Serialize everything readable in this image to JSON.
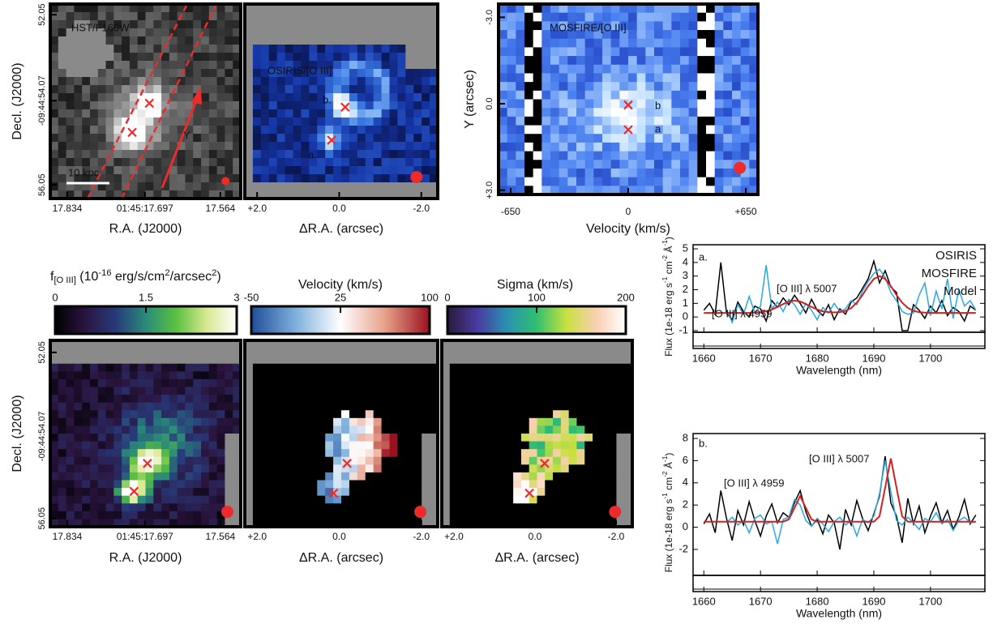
{
  "chart_data": [
    {
      "type": "image",
      "title": "HST/F160W",
      "xlabel": "R.A. (J2000)",
      "ylabel": "Decl. (J2000)",
      "xlim": [
        17.864,
        17.528
      ],
      "xticks": [
        17.834,
        {
          "value": 17.697,
          "label": "01:45:17.697"
        },
        17.564
      ],
      "ylim": [
        56.37,
        51.8
      ],
      "yticks": [
        52.05,
        {
          "value": 54.07,
          "label": "-09:44:54.07"
        },
        56.05
      ],
      "annotations": [
        "10 kpc",
        "Y"
      ]
    },
    {
      "type": "image",
      "title": "OSIRIS/[O III]",
      "xlabel": "ΔR.A. (arcsec)",
      "xlim": [
        2.3,
        -2.4
      ],
      "xticks": [
        {
          "value": 2,
          "label": "+2.0"
        },
        {
          "value": 0,
          "label": "0.0"
        },
        {
          "value": -2,
          "label": "-2.0"
        }
      ],
      "annotations": [
        "a.",
        "b."
      ]
    },
    {
      "type": "image",
      "title": "MOSFIRE/[O III]",
      "xlabel": "Velocity (km/s)",
      "ylabel": "Y (arcsec)",
      "xlim": [
        -717,
        717
      ],
      "xticks": [
        -650,
        0,
        {
          "value": 650,
          "label": "+650"
        }
      ],
      "ylim": [
        3.15,
        -3.46
      ],
      "yticks": [
        {
          "value": -3,
          "label": "-3.0"
        },
        {
          "value": 0,
          "label": "0.0"
        },
        {
          "value": 3,
          "label": "+3.0"
        }
      ],
      "annotations": [
        "a",
        "b"
      ]
    },
    {
      "type": "image",
      "xlabel": "R.A. (J2000)",
      "ylabel": "Decl. (J2000)",
      "xlim": [
        17.864,
        17.528
      ],
      "xticks": [
        17.834,
        {
          "value": 17.697,
          "label": "01:45:17.697"
        },
        17.564
      ],
      "ylim": [
        56.25,
        51.76
      ],
      "yticks": [
        52.05,
        {
          "value": 54.07,
          "label": "-09:44:54.07"
        },
        56.05
      ],
      "colorbar": {
        "label": [
          "f",
          "[O III]",
          " (10",
          "-16",
          " erg/s/cm",
          "2",
          "/arcsec",
          "2",
          ")"
        ],
        "lim": [
          0,
          3
        ],
        "ticks": [
          0,
          1.5,
          3
        ],
        "colors": [
          "#000000",
          "#2a1540",
          "#283a7a",
          "#2a8a7a",
          "#5ac040",
          "#d8e890",
          "#ffffff"
        ]
      }
    },
    {
      "type": "image",
      "xlabel": "ΔR.A. (arcsec)",
      "xlim": [
        2.3,
        -2.4
      ],
      "xticks": [
        {
          "value": 2,
          "label": "+2.0"
        },
        {
          "value": 0,
          "label": "0.0"
        },
        {
          "value": -2,
          "label": "-2.0"
        }
      ],
      "colorbar": {
        "label": "Velocity (km/s)",
        "lim": [
          -50,
          100
        ],
        "ticks": [
          -50,
          25,
          100
        ],
        "colors": [
          "#1f4e9a",
          "#7fb0dc",
          "#ffffff",
          "#e7a08a",
          "#9a1020"
        ]
      }
    },
    {
      "type": "image",
      "xlabel": "ΔR.A. (arcsec)",
      "xlim": [
        2.3,
        -2.4
      ],
      "xticks": [
        {
          "value": 2,
          "label": "+2.0"
        },
        {
          "value": 0,
          "label": "0.0"
        },
        {
          "value": -2,
          "label": "-2.0"
        }
      ],
      "colorbar": {
        "label": "Sigma (km/s)",
        "lim": [
          0,
          200
        ],
        "ticks": [
          0,
          100,
          200
        ],
        "colors": [
          "#2a1a3a",
          "#4a3aa0",
          "#2a90b0",
          "#30c070",
          "#c8e040",
          "#f8d0b0",
          "#ffffff"
        ]
      }
    },
    {
      "type": "line",
      "xlabel": "Wavelength (nm)",
      "ylabel": [
        "Flux (1e-18 erg s",
        "-1",
        " cm",
        "-2",
        " Å",
        "-1",
        ")"
      ],
      "x": [
        1660,
        1661,
        1662,
        1663,
        1664,
        1665,
        1666,
        1667,
        1668,
        1669,
        1670,
        1671,
        1672,
        1673,
        1674,
        1675,
        1676,
        1677,
        1678,
        1679,
        1680,
        1681,
        1682,
        1683,
        1684,
        1685,
        1686,
        1687,
        1688,
        1689,
        1690,
        1691,
        1692,
        1693,
        1694,
        1695,
        1696,
        1697,
        1698,
        1699,
        1700,
        1701,
        1702,
        1703,
        1704,
        1705,
        1706,
        1707,
        1708
      ],
      "xlim": [
        1658.1,
        1709.6
      ],
      "xticks": [
        1660,
        1670,
        1680,
        1690,
        1700
      ],
      "ylim": [
        -1.12,
        5.3
      ],
      "yticks": [
        -1,
        0,
        1,
        2,
        3,
        4,
        5
      ],
      "legend": "upper right",
      "annotations": [
        "a.",
        "[O III] λ 4959",
        "[O III] λ 5007"
      ],
      "series": [
        {
          "name": "OSIRIS",
          "color": "#000000",
          "values": [
            0.5,
            1.0,
            0.2,
            4.0,
            0.3,
            -0.2,
            1.1,
            0.4,
            0.0,
            0.8,
            0.6,
            -0.3,
            1.2,
            0.7,
            1.4,
            0.9,
            1.6,
            1.0,
            0.3,
            1.3,
            0.5,
            0.1,
            0.9,
            -0.2,
            0.6,
            0.2,
            1.1,
            1.4,
            2.1,
            2.8,
            4.1,
            2.5,
            3.4,
            2.2,
            1.8,
            -1.0,
            -1.0,
            0.9,
            0.5,
            -0.1,
            0.8,
            0.3,
            1.2,
            0.1,
            0.7,
            0.4,
            -0.3,
            0.8,
            0.5
          ]
        },
        {
          "name": "MOSFIRE",
          "color": "#29a8e0",
          "values": [
            null,
            null,
            null,
            null,
            0.6,
            -0.4,
            0.9,
            0.2,
            1.5,
            0.3,
            0.8,
            3.8,
            0.6,
            1.1,
            0.4,
            1.3,
            0.9,
            0.2,
            1.0,
            0.5,
            -0.2,
            0.7,
            0.3,
            1.0,
            0.4,
            0.6,
            1.2,
            0.9,
            1.9,
            2.6,
            3.2,
            3.5,
            2.9,
            1.8,
            1.2,
            0.4,
            0.2,
            0.3,
            1.6,
            2.5,
            0.1,
            1.9,
            0.6,
            2.8,
            -0.1,
            2.0,
            0.8,
            1.2,
            0.5
          ]
        },
        {
          "name": "Model",
          "color": "#d42020",
          "values": [
            0.3,
            0.3,
            0.3,
            0.3,
            0.3,
            0.3,
            0.3,
            0.3,
            0.3,
            0.32,
            0.35,
            0.42,
            0.55,
            0.74,
            0.95,
            1.13,
            1.2,
            1.13,
            0.95,
            0.74,
            0.55,
            0.42,
            0.35,
            0.34,
            0.35,
            0.45,
            0.66,
            1.05,
            1.61,
            2.26,
            2.79,
            3.0,
            2.79,
            2.26,
            1.61,
            1.05,
            0.66,
            0.45,
            0.35,
            0.32,
            0.3,
            0.3,
            0.3,
            0.3,
            0.3,
            0.3,
            0.3,
            0.3,
            0.3
          ]
        }
      ]
    },
    {
      "type": "line",
      "xlabel": "Wavelength (nm)",
      "ylabel": [
        "Flux (1e-18 erg s",
        "-1",
        " cm",
        "-2",
        " Å",
        "-1",
        ")"
      ],
      "x": [
        1660,
        1661,
        1662,
        1663,
        1664,
        1665,
        1666,
        1667,
        1668,
        1669,
        1670,
        1671,
        1672,
        1673,
        1674,
        1675,
        1676,
        1677,
        1678,
        1679,
        1680,
        1681,
        1682,
        1683,
        1684,
        1685,
        1686,
        1687,
        1688,
        1689,
        1690,
        1691,
        1692,
        1693,
        1694,
        1695,
        1696,
        1697,
        1698,
        1699,
        1700,
        1701,
        1702,
        1703,
        1704,
        1705,
        1706,
        1707,
        1708
      ],
      "xlim": [
        1658.1,
        1709.6
      ],
      "xticks": [
        1660,
        1670,
        1680,
        1690,
        1700
      ],
      "ylim": [
        -4.34,
        8.44
      ],
      "yticks": [
        -2,
        0,
        2,
        4,
        6,
        8
      ],
      "annotations": [
        "b.",
        "[O III] λ 4959",
        "[O III] λ 5007"
      ],
      "series": [
        {
          "color": "#000000",
          "values": [
            0.3,
            1.2,
            -0.5,
            3.3,
            0.8,
            -1.2,
            1.5,
            0.2,
            2.3,
            0.6,
            -0.8,
            1.0,
            2.1,
            0.4,
            1.3,
            0.9,
            2.2,
            3.3,
            1.4,
            0.1,
            0.7,
            -0.6,
            1.1,
            0.4,
            -2.0,
            1.6,
            0.2,
            2.4,
            0.8,
            -0.3,
            1.2,
            2.8,
            6.4,
            2.2,
            1.0,
            -1.4,
            2.6,
            0.3,
            1.9,
            -0.5,
            1.0,
            2.2,
            0.4,
            1.5,
            -0.2,
            0.9,
            2.5,
            0.3,
            1.1
          ]
        },
        {
          "color": "#29a8e0",
          "values": [
            null,
            null,
            null,
            null,
            0.4,
            0.9,
            0.2,
            0.6,
            -0.5,
            0.8,
            1.1,
            0.3,
            0.5,
            -1.5,
            0.7,
            0.9,
            2.5,
            2.0,
            0.6,
            0.1,
            0.8,
            0.3,
            -0.4,
            0.5,
            0.9,
            0.2,
            0.6,
            -0.8,
            0.7,
            0.4,
            1.0,
            3.0,
            6.0,
            3.2,
            0.6,
            0.2,
            0.9,
            0.4,
            -0.2,
            0.8,
            0.5,
            1.3,
            0.3,
            0.7,
            -0.3,
            0.6,
            0.9,
            0.4,
            0.5
          ]
        },
        {
          "color": "#d42020",
          "values": [
            0.5,
            0.5,
            0.5,
            0.5,
            0.5,
            0.5,
            0.5,
            0.5,
            0.5,
            0.5,
            0.5,
            0.5,
            0.5,
            0.5,
            0.5,
            0.7,
            1.74,
            2.8,
            1.74,
            0.7,
            0.5,
            0.5,
            0.5,
            0.5,
            0.5,
            0.5,
            0.5,
            0.5,
            0.5,
            0.5,
            0.5,
            0.98,
            3.57,
            6.2,
            3.57,
            0.98,
            0.5,
            0.5,
            0.5,
            0.5,
            0.5,
            0.5,
            0.5,
            0.5,
            0.5,
            0.5,
            0.5,
            0.5,
            0.5
          ]
        }
      ]
    }
  ]
}
